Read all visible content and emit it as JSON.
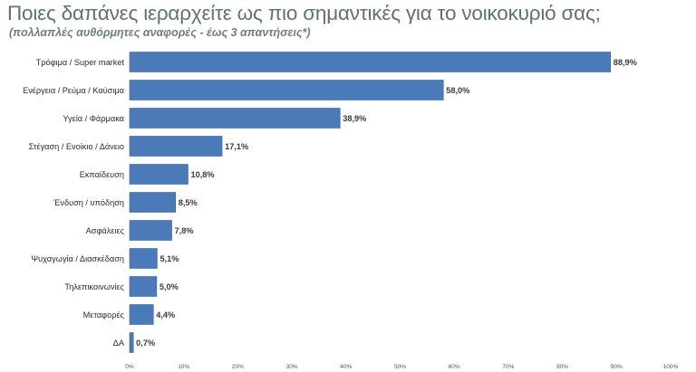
{
  "title": "Ποιες δαπάνες ιεραρχείτε ως πιο σημαντικές για το νοικοκυριό σας;",
  "subtitle": "(πολλαπλές αυθόρμητες αναφορές - έως 3 απαντήσεις*)",
  "colors": {
    "bar": "#4a7ab8",
    "bar_stroke": "#3b6499"
  },
  "chart_data": {
    "type": "bar",
    "orientation": "horizontal",
    "categories": [
      "Τρόφιμα / Super market",
      "Ενέργεια / Ρεύμα / Καύσιμα",
      "Υγεία / Φάρμακα",
      "Στέγαση / Ενοίκιο / Δάνειο",
      "Εκπαίδευση",
      "Ένδυση / υπόδηση",
      "Ασφάλειες",
      "Ψυχαγωγία / Διασκέδαση",
      "Τηλεπικοινωνίες",
      "Μεταφορές",
      "ΔΑ"
    ],
    "values": [
      88.9,
      58.0,
      38.9,
      17.1,
      10.8,
      8.5,
      7.8,
      5.1,
      5.0,
      4.4,
      0.7
    ],
    "value_labels": [
      "88,9%",
      "58,0%",
      "38,9%",
      "17,1%",
      "10,8%",
      "8,5%",
      "7,8%",
      "5,1%",
      "5,0%",
      "4,4%",
      "0,7%"
    ],
    "xlim": [
      0,
      100
    ],
    "x_ticks": [
      0,
      10,
      20,
      30,
      40,
      50,
      60,
      70,
      80,
      90,
      100
    ],
    "x_tick_labels": [
      "0%",
      "10%",
      "20%",
      "30%",
      "40%",
      "50%",
      "60%",
      "70%",
      "80%",
      "90%",
      "100%"
    ],
    "grid": false,
    "legend": "none"
  }
}
